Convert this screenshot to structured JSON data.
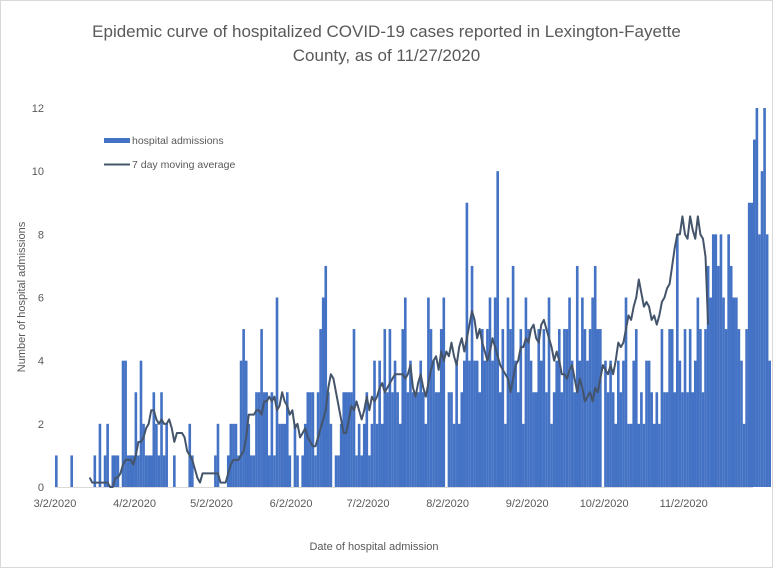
{
  "chart_data": {
    "type": "bar",
    "title_lines": [
      "Epidemic curve of hospitalized COVID-19 cases reported in Lexington-Fayette",
      "County, as of 11/27/2020"
    ],
    "xlabel": "Date of hospital admission",
    "ylabel": "Number of hospital admissions",
    "ylim": [
      0,
      12
    ],
    "yticks": [
      "0",
      "2",
      "4",
      "6",
      "8",
      "10",
      "12"
    ],
    "start_date": "3/2/2020",
    "end_date": "11/27/2020",
    "xticks": [
      "3/2/2020",
      "4/2/2020",
      "5/2/2020",
      "6/2/2020",
      "7/2/2020",
      "8/2/2020",
      "9/2/2020",
      "10/2/2020",
      "11/2/2020"
    ],
    "xtick_day_offsets": [
      0,
      31,
      61,
      92,
      122,
      153,
      184,
      214,
      245
    ],
    "grid": false,
    "legend": {
      "position": "top-left",
      "entries": [
        "hospital admissions",
        "7 day moving average"
      ]
    },
    "colors": {
      "bars": "#4472c4",
      "line": "#44546a",
      "text": "#595959",
      "axis": "#d9d9d9"
    },
    "series": [
      {
        "name": "hospital admissions",
        "type": "bar",
        "values": [
          1,
          0,
          0,
          0,
          0,
          0,
          1,
          0,
          0,
          0,
          0,
          0,
          0,
          0,
          0,
          1,
          0,
          2,
          0,
          1,
          2,
          0,
          1,
          1,
          1,
          0,
          4,
          4,
          1,
          1,
          1,
          3,
          1,
          4,
          2,
          1,
          1,
          1,
          3,
          2,
          1,
          3,
          1,
          2,
          0,
          0,
          1,
          0,
          0,
          0,
          0,
          0,
          2,
          1,
          0,
          0,
          0,
          0,
          0,
          0,
          0,
          0,
          1,
          2,
          0,
          0,
          0,
          1,
          2,
          2,
          2,
          1,
          4,
          5,
          4,
          2,
          1,
          1,
          3,
          3,
          5,
          3,
          3,
          1,
          3,
          1,
          6,
          2,
          2,
          2,
          3,
          1,
          0,
          2,
          1,
          0,
          1,
          2,
          3,
          3,
          3,
          1,
          3,
          5,
          6,
          7,
          3,
          2,
          0,
          1,
          1,
          2,
          3,
          3,
          3,
          3,
          5,
          1,
          2,
          1,
          2,
          3,
          1,
          2,
          4,
          2,
          4,
          2,
          5,
          3,
          5,
          3,
          4,
          3,
          2,
          5,
          6,
          3,
          4,
          3,
          3,
          3,
          4,
          3,
          2,
          6,
          5,
          4,
          3,
          3,
          5,
          6,
          0,
          3,
          3,
          2,
          4,
          2,
          3,
          4,
          9,
          4,
          7,
          4,
          4,
          3,
          5,
          4,
          5,
          6,
          4,
          6,
          10,
          3,
          5,
          2,
          6,
          5,
          7,
          4,
          3,
          5,
          2,
          6,
          5,
          4,
          3,
          3,
          5,
          4,
          5,
          3,
          6,
          2,
          3,
          4,
          5,
          3,
          5,
          5,
          6,
          4,
          3,
          7,
          4,
          6,
          5,
          4,
          5,
          6,
          7,
          5,
          5,
          0,
          4,
          3,
          4,
          3,
          2,
          4,
          3,
          4,
          6,
          2,
          2,
          4,
          5,
          2,
          3,
          2,
          4,
          4,
          3,
          2,
          3,
          2,
          5,
          3,
          3,
          5,
          5,
          3,
          8,
          4,
          3,
          5,
          3,
          5,
          3,
          4,
          6,
          5,
          3,
          5,
          7,
          6,
          8,
          8,
          7,
          8,
          6,
          5,
          8,
          7,
          6,
          6,
          5,
          4,
          2,
          5,
          9,
          9,
          11,
          12,
          8,
          10,
          12,
          8,
          4
        ]
      },
      {
        "name": "7 day moving average",
        "type": "line",
        "start_offset": 13,
        "values": [
          0.3,
          0.14,
          0.14,
          0.14,
          0.14,
          0.14,
          0.14,
          0.14,
          0.0,
          0.0,
          0.29,
          0.3,
          0.43,
          0.71,
          0.86,
          0.86,
          0.86,
          0.71,
          1.0,
          1.43,
          1.43,
          1.57,
          1.86,
          2.0,
          2.43,
          2.43,
          2.14,
          2.0,
          2.14,
          2.0,
          2.0,
          2.14,
          1.86,
          1.43,
          1.71,
          1.71,
          1.71,
          1.57,
          1.14,
          1.0,
          0.86,
          0.57,
          0.29,
          0.14,
          0.43,
          0.43,
          0.43,
          0.43,
          0.43,
          0.43,
          0.43,
          0.14,
          0.14,
          0.14,
          0.43,
          0.71,
          0.86,
          0.86,
          0.86,
          1.0,
          1.14,
          1.57,
          2.29,
          2.29,
          2.29,
          2.43,
          2.43,
          2.29,
          2.71,
          2.71,
          2.86,
          2.71,
          2.86,
          2.43,
          2.57,
          3.0,
          2.71,
          2.57,
          2.29,
          2.43,
          1.86,
          2.0,
          1.57,
          1.71,
          1.86,
          1.57,
          1.43,
          1.29,
          1.29,
          1.57,
          1.86,
          2.14,
          2.43,
          3.14,
          3.57,
          3.43,
          3.0,
          2.57,
          2.14,
          1.71,
          1.71,
          2.14,
          2.57,
          2.43,
          2.71,
          2.43,
          2.14,
          2.43,
          2.86,
          2.43,
          2.86,
          2.71,
          2.86,
          3.14,
          3.29,
          3.0,
          3.14,
          3.29,
          3.43,
          3.57,
          3.57,
          3.57,
          3.57,
          3.43,
          3.57,
          3.86,
          3.14,
          2.86,
          3.29,
          3.57,
          3.14,
          2.86,
          3.29,
          3.71,
          4.0,
          4.14,
          3.71,
          4.29,
          4.0,
          4.29,
          4.14,
          4.57,
          4.14,
          3.86,
          4.43,
          4.71,
          4.29,
          4.71,
          5.14,
          5.57,
          5.29,
          4.71,
          5.0,
          4.57,
          4.29,
          4.0,
          4.29,
          4.71,
          4.43,
          4.14,
          3.86,
          3.71,
          3.57,
          3.43,
          3.0,
          3.43,
          3.86,
          4.0,
          4.43,
          4.43,
          4.71,
          4.57,
          5.0,
          5.14,
          4.71,
          4.57,
          5.14,
          5.29,
          5.0,
          4.71,
          4.43,
          4.0,
          4.29,
          4.0,
          3.57,
          3.57,
          3.43,
          3.71,
          3.86,
          3.43,
          3.0,
          3.43,
          3.14,
          2.71,
          2.86,
          3.0,
          2.71,
          3.14,
          3.0,
          3.43,
          3.86,
          3.71,
          3.57,
          3.86,
          3.57,
          4.0,
          4.57,
          4.43,
          4.57,
          5.0,
          5.43,
          5.29,
          5.71,
          6.0,
          6.57,
          6.14,
          5.71,
          5.86,
          5.71,
          5.29,
          5.43,
          5.14,
          5.43,
          5.86,
          6.0,
          6.29,
          6.43,
          7.0,
          7.57,
          8.0,
          8.0,
          8.57,
          8.0,
          7.86,
          8.57,
          8.14,
          7.86,
          8.57,
          8.0,
          7.86,
          7.29,
          5.14
        ]
      }
    ]
  }
}
